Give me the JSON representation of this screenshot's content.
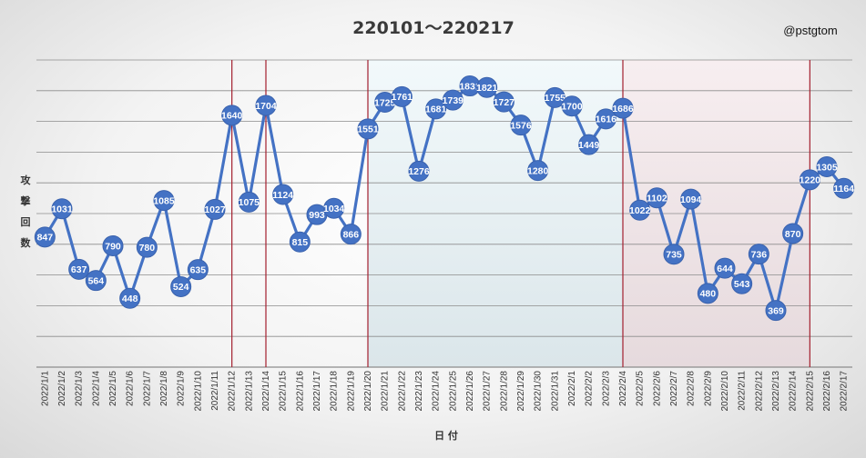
{
  "chart_data": {
    "type": "line",
    "title": "220101～220217",
    "credit": "@pstgtom",
    "ylabel": "攻撃回数",
    "xlabel": "日 付",
    "grid": true,
    "ylim": [
      0,
      2000
    ],
    "categories": [
      "2022/1/1",
      "2022/1/2",
      "2022/1/3",
      "2022/1/4",
      "2022/1/5",
      "2022/1/6",
      "2022/1/7",
      "2022/1/8",
      "2022/1/9",
      "2022/1/10",
      "2022/1/11",
      "2022/1/12",
      "2022/1/13",
      "2022/1/14",
      "2022/1/15",
      "2022/1/16",
      "2022/1/17",
      "2022/1/18",
      "2022/1/19",
      "2022/1/20",
      "2022/1/21",
      "2022/1/22",
      "2022/1/23",
      "2022/1/24",
      "2022/1/25",
      "2022/1/26",
      "2022/1/27",
      "2022/1/28",
      "2022/1/29",
      "2022/1/30",
      "2022/1/31",
      "2022/2/1",
      "2022/2/2",
      "2022/2/3",
      "2022/2/4",
      "2022/2/5",
      "2022/2/6",
      "2022/2/7",
      "2022/2/8",
      "2022/2/9",
      "2022/2/10",
      "2022/2/11",
      "2022/2/12",
      "2022/2/13",
      "2022/2/14",
      "2022/2/15",
      "2022/2/16",
      "2022/2/17"
    ],
    "series": [
      {
        "values": [
          847,
          1031,
          637,
          564,
          790,
          448,
          780,
          1085,
          524,
          635,
          1027,
          1640,
          1075,
          1704,
          1124,
          815,
          993,
          1034,
          866,
          1551,
          1725,
          1761,
          1276,
          1681,
          1739,
          1831,
          1821,
          1727,
          1576,
          1280,
          1755,
          1700,
          1449,
          1616,
          1686,
          1022,
          1102,
          735,
          1094,
          480,
          644,
          543,
          736,
          369,
          870,
          1220,
          1305,
          1164
        ]
      }
    ],
    "markers": [
      "2022/1/12",
      "2022/1/14",
      "2022/1/20",
      "2022/2/4",
      "2022/2/15"
    ],
    "shaded_ranges": [
      {
        "from": "2022/1/20",
        "to": "2022/2/4",
        "tone": "blue"
      },
      {
        "from": "2022/2/4",
        "to": "2022/2/15",
        "tone": "pink"
      }
    ],
    "colors": {
      "line": "#4472c4",
      "marker_line": "#a31f2e",
      "grid": "#8c8c8c",
      "label_text": "#ffffff"
    }
  }
}
